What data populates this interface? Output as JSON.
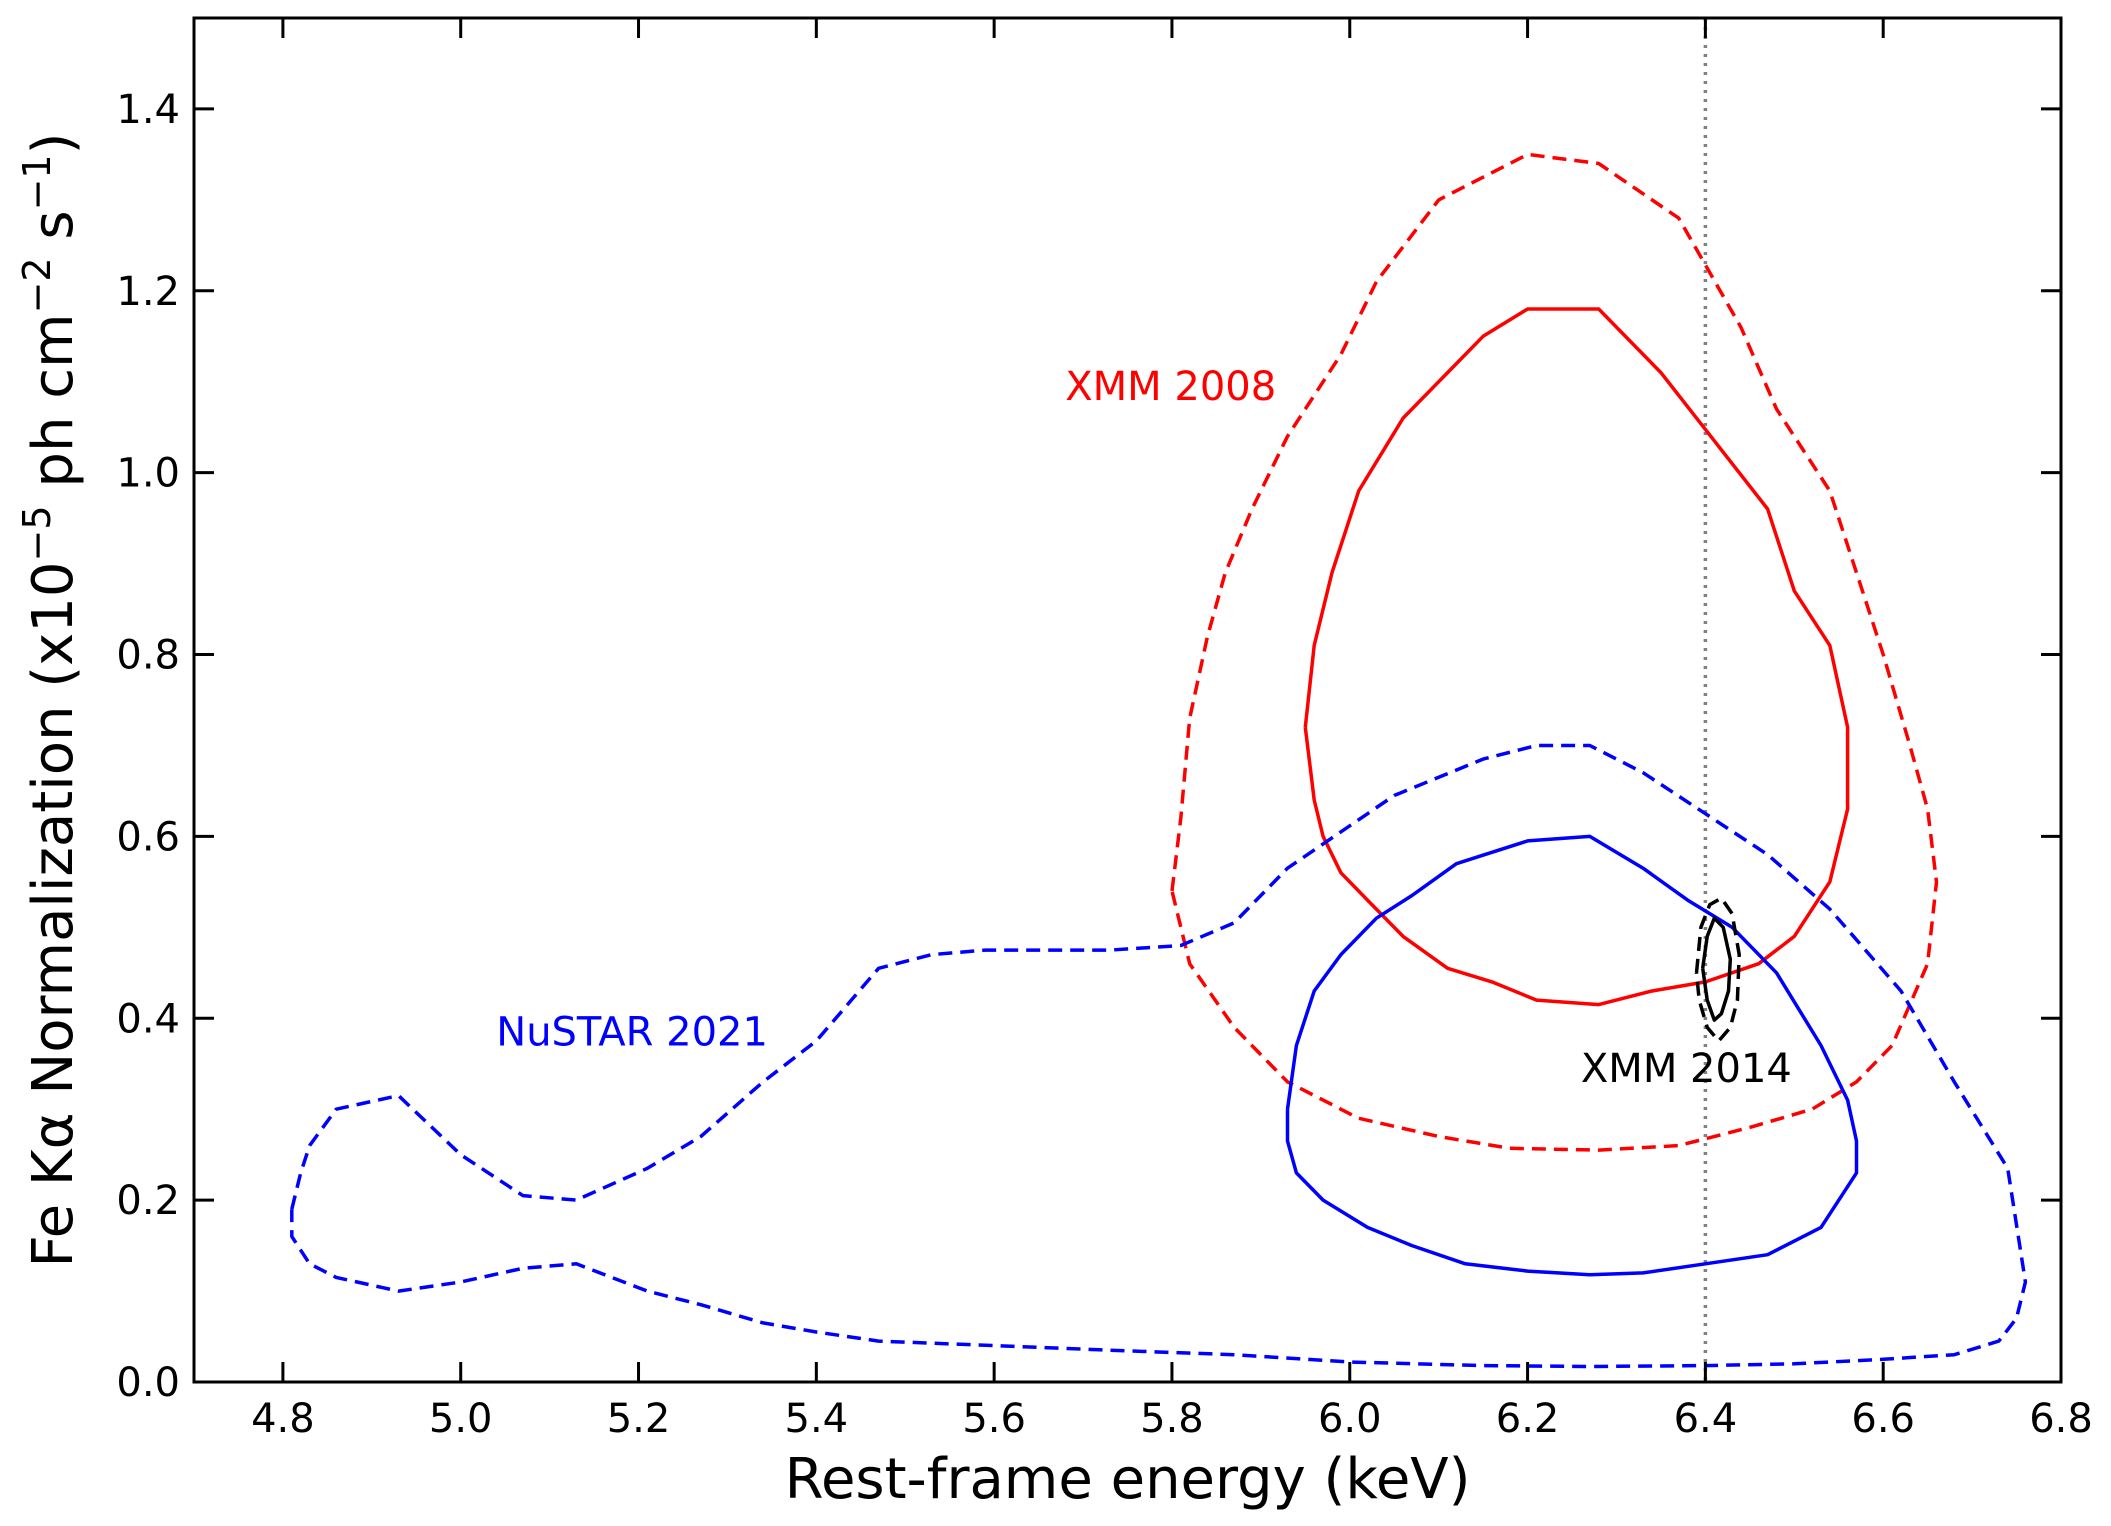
{
  "chart_data": {
    "type": "line",
    "title": "",
    "xlabel": "Rest-frame energy (keV)",
    "ylabel_parts": {
      "base": "Fe Kα Normalization (x10",
      "exp1": "−5",
      "mid1": " ph cm",
      "exp2": "−2",
      "mid2": " s",
      "exp3": "−1",
      "end": ")"
    },
    "xlim": [
      4.7,
      6.8
    ],
    "ylim": [
      0.0,
      1.5
    ],
    "xticks": [
      "4.8",
      "5.0",
      "5.2",
      "5.4",
      "5.6",
      "5.8",
      "6.0",
      "6.2",
      "6.4",
      "6.6",
      "6.8"
    ],
    "yticks": [
      "0.0",
      "0.2",
      "0.4",
      "0.6",
      "0.8",
      "1.0",
      "1.2",
      "1.4"
    ],
    "reference_line": {
      "x": 6.4,
      "style": "dotted",
      "color": "#808080"
    },
    "series": [
      {
        "key": "xmm2008_outer",
        "color": "#ff0000",
        "dash": "dashed",
        "points": [
          [
            5.8,
            0.54
          ],
          [
            5.81,
            0.62
          ],
          [
            5.82,
            0.73
          ],
          [
            5.84,
            0.82
          ],
          [
            5.86,
            0.89
          ],
          [
            5.89,
            0.96
          ],
          [
            5.93,
            1.04
          ],
          [
            5.99,
            1.13
          ],
          [
            6.03,
            1.21
          ],
          [
            6.1,
            1.3
          ],
          [
            6.2,
            1.35
          ],
          [
            6.28,
            1.34
          ],
          [
            6.37,
            1.28
          ],
          [
            6.44,
            1.16
          ],
          [
            6.48,
            1.07
          ],
          [
            6.54,
            0.98
          ],
          [
            6.6,
            0.8
          ],
          [
            6.63,
            0.7
          ],
          [
            6.65,
            0.63
          ],
          [
            6.66,
            0.55
          ],
          [
            6.65,
            0.46
          ],
          [
            6.61,
            0.37
          ],
          [
            6.57,
            0.33
          ],
          [
            6.52,
            0.3
          ],
          [
            6.45,
            0.28
          ],
          [
            6.37,
            0.26
          ],
          [
            6.28,
            0.255
          ],
          [
            6.18,
            0.257
          ],
          [
            6.1,
            0.27
          ],
          [
            6.01,
            0.29
          ],
          [
            5.93,
            0.33
          ],
          [
            5.87,
            0.39
          ],
          [
            5.82,
            0.46
          ],
          [
            5.8,
            0.54
          ]
        ]
      },
      {
        "key": "xmm2008_inner",
        "color": "#ff0000",
        "dash": "solid",
        "points": [
          [
            5.95,
            0.72
          ],
          [
            5.96,
            0.81
          ],
          [
            5.98,
            0.89
          ],
          [
            6.01,
            0.98
          ],
          [
            6.06,
            1.06
          ],
          [
            6.11,
            1.11
          ],
          [
            6.15,
            1.15
          ],
          [
            6.2,
            1.18
          ],
          [
            6.28,
            1.18
          ],
          [
            6.35,
            1.11
          ],
          [
            6.39,
            1.06
          ],
          [
            6.43,
            1.01
          ],
          [
            6.47,
            0.96
          ],
          [
            6.5,
            0.87
          ],
          [
            6.54,
            0.81
          ],
          [
            6.56,
            0.72
          ],
          [
            6.56,
            0.63
          ],
          [
            6.54,
            0.55
          ],
          [
            6.5,
            0.49
          ],
          [
            6.46,
            0.46
          ],
          [
            6.4,
            0.44
          ],
          [
            6.34,
            0.43
          ],
          [
            6.28,
            0.415
          ],
          [
            6.21,
            0.42
          ],
          [
            6.16,
            0.44
          ],
          [
            6.11,
            0.455
          ],
          [
            6.06,
            0.49
          ],
          [
            6.02,
            0.53
          ],
          [
            5.99,
            0.56
          ],
          [
            5.97,
            0.6
          ],
          [
            5.96,
            0.64
          ],
          [
            5.95,
            0.72
          ]
        ]
      },
      {
        "key": "nustar2021_outer",
        "color": "#0000ff",
        "dash": "dashed",
        "points": [
          [
            4.81,
            0.19
          ],
          [
            4.82,
            0.23
          ],
          [
            4.83,
            0.26
          ],
          [
            4.86,
            0.3
          ],
          [
            4.93,
            0.315
          ],
          [
            5.0,
            0.25
          ],
          [
            5.07,
            0.205
          ],
          [
            5.13,
            0.2
          ],
          [
            5.21,
            0.235
          ],
          [
            5.27,
            0.27
          ],
          [
            5.34,
            0.33
          ],
          [
            5.4,
            0.375
          ],
          [
            5.47,
            0.455
          ],
          [
            5.53,
            0.47
          ],
          [
            5.59,
            0.475
          ],
          [
            5.73,
            0.475
          ],
          [
            5.81,
            0.48
          ],
          [
            5.87,
            0.505
          ],
          [
            5.93,
            0.565
          ],
          [
            6.05,
            0.645
          ],
          [
            6.15,
            0.685
          ],
          [
            6.21,
            0.7
          ],
          [
            6.27,
            0.7
          ],
          [
            6.33,
            0.67
          ],
          [
            6.4,
            0.625
          ],
          [
            6.47,
            0.58
          ],
          [
            6.54,
            0.52
          ],
          [
            6.62,
            0.43
          ],
          [
            6.68,
            0.33
          ],
          [
            6.74,
            0.235
          ],
          [
            6.76,
            0.11
          ],
          [
            6.75,
            0.07
          ],
          [
            6.73,
            0.045
          ],
          [
            6.68,
            0.03
          ],
          [
            6.6,
            0.025
          ],
          [
            6.5,
            0.02
          ],
          [
            6.4,
            0.018
          ],
          [
            6.27,
            0.017
          ],
          [
            6.15,
            0.018
          ],
          [
            6.0,
            0.022
          ],
          [
            5.87,
            0.03
          ],
          [
            5.73,
            0.035
          ],
          [
            5.6,
            0.04
          ],
          [
            5.47,
            0.045
          ],
          [
            5.4,
            0.055
          ],
          [
            5.34,
            0.065
          ],
          [
            5.27,
            0.085
          ],
          [
            5.21,
            0.1
          ],
          [
            5.13,
            0.13
          ],
          [
            5.07,
            0.125
          ],
          [
            5.0,
            0.11
          ],
          [
            4.93,
            0.1
          ],
          [
            4.86,
            0.115
          ],
          [
            4.83,
            0.13
          ],
          [
            4.81,
            0.16
          ],
          [
            4.81,
            0.19
          ]
        ]
      },
      {
        "key": "nustar2021_inner",
        "color": "#0000ff",
        "dash": "solid",
        "points": [
          [
            5.93,
            0.3
          ],
          [
            5.94,
            0.37
          ],
          [
            5.96,
            0.43
          ],
          [
            5.99,
            0.47
          ],
          [
            6.03,
            0.51
          ],
          [
            6.07,
            0.535
          ],
          [
            6.12,
            0.57
          ],
          [
            6.2,
            0.595
          ],
          [
            6.27,
            0.6
          ],
          [
            6.33,
            0.565
          ],
          [
            6.38,
            0.53
          ],
          [
            6.43,
            0.5
          ],
          [
            6.48,
            0.45
          ],
          [
            6.53,
            0.37
          ],
          [
            6.56,
            0.31
          ],
          [
            6.57,
            0.265
          ],
          [
            6.57,
            0.23
          ],
          [
            6.53,
            0.17
          ],
          [
            6.47,
            0.14
          ],
          [
            6.4,
            0.13
          ],
          [
            6.33,
            0.12
          ],
          [
            6.27,
            0.118
          ],
          [
            6.2,
            0.122
          ],
          [
            6.13,
            0.13
          ],
          [
            6.07,
            0.15
          ],
          [
            6.02,
            0.17
          ],
          [
            5.97,
            0.2
          ],
          [
            5.94,
            0.23
          ],
          [
            5.93,
            0.265
          ],
          [
            5.93,
            0.3
          ]
        ]
      },
      {
        "key": "xmm2014_outer",
        "color": "#000000",
        "dash": "dashed",
        "points": [
          [
            6.39,
            0.45
          ],
          [
            6.395,
            0.5
          ],
          [
            6.405,
            0.525
          ],
          [
            6.418,
            0.532
          ],
          [
            6.43,
            0.515
          ],
          [
            6.438,
            0.47
          ],
          [
            6.436,
            0.42
          ],
          [
            6.428,
            0.39
          ],
          [
            6.415,
            0.375
          ],
          [
            6.402,
            0.39
          ],
          [
            6.393,
            0.42
          ],
          [
            6.39,
            0.45
          ]
        ]
      },
      {
        "key": "xmm2014_inner",
        "color": "#000000",
        "dash": "solid",
        "points": [
          [
            6.397,
            0.455
          ],
          [
            6.402,
            0.49
          ],
          [
            6.41,
            0.51
          ],
          [
            6.42,
            0.5
          ],
          [
            6.428,
            0.465
          ],
          [
            6.426,
            0.43
          ],
          [
            6.418,
            0.405
          ],
          [
            6.41,
            0.398
          ],
          [
            6.402,
            0.42
          ],
          [
            6.397,
            0.455
          ]
        ]
      }
    ],
    "annotations": [
      {
        "text": "XMM 2008",
        "x": 5.68,
        "y": 1.08,
        "color": "#ff0000"
      },
      {
        "text": "NuSTAR 2021",
        "x": 5.04,
        "y": 0.37,
        "color": "#0000ff"
      },
      {
        "text": "XMM 2014",
        "x": 6.26,
        "y": 0.33,
        "color": "#000000"
      }
    ]
  }
}
